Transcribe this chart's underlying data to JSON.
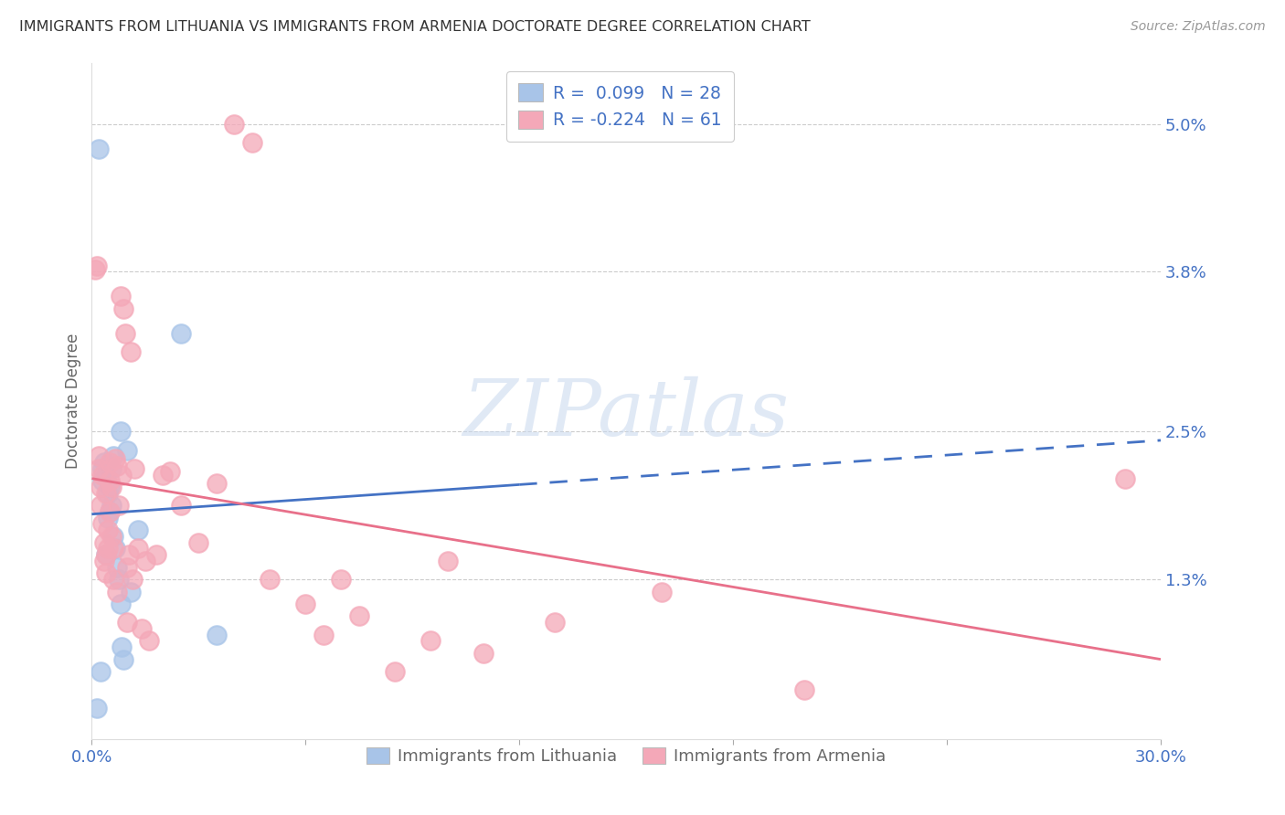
{
  "title": "IMMIGRANTS FROM LITHUANIA VS IMMIGRANTS FROM ARMENIA DOCTORATE DEGREE CORRELATION CHART",
  "source": "Source: ZipAtlas.com",
  "ylabel": "Doctorate Degree",
  "yticks_right": [
    "5.0%",
    "3.8%",
    "2.5%",
    "1.3%"
  ],
  "ytick_values": [
    5.0,
    3.8,
    2.5,
    1.3
  ],
  "xlim": [
    0.0,
    30.0
  ],
  "ylim": [
    0.0,
    5.5
  ],
  "color_blue": "#a8c4e8",
  "color_pink": "#f4a8b8",
  "color_line_blue": "#4472c4",
  "color_line_pink": "#e8708a",
  "color_axis_labels": "#4472c4",
  "watermark_text": "ZIPatlas",
  "blue_line_x0": 0.0,
  "blue_line_y0": 1.83,
  "blue_line_x1": 30.0,
  "blue_line_y1": 2.43,
  "blue_dash_start_x": 12.0,
  "pink_line_x0": 0.0,
  "pink_line_y0": 2.12,
  "pink_line_x1": 30.0,
  "pink_line_y1": 0.65,
  "blue_x": [
    0.15,
    0.2,
    0.25,
    0.3,
    0.3,
    0.35,
    0.4,
    0.4,
    0.45,
    0.45,
    0.5,
    0.5,
    0.55,
    0.55,
    0.6,
    0.6,
    0.65,
    0.7,
    0.75,
    0.8,
    0.8,
    0.85,
    0.9,
    1.0,
    1.1,
    1.3,
    2.5,
    3.5
  ],
  "blue_y": [
    0.25,
    4.8,
    0.55,
    2.1,
    2.2,
    2.25,
    1.5,
    2.15,
    2.0,
    1.8,
    1.85,
    2.05,
    2.2,
    1.9,
    2.3,
    1.65,
    1.55,
    1.4,
    1.3,
    2.5,
    1.1,
    0.75,
    0.65,
    2.35,
    1.2,
    1.7,
    3.3,
    0.85
  ],
  "pink_x": [
    0.1,
    0.15,
    0.2,
    0.2,
    0.25,
    0.25,
    0.3,
    0.3,
    0.35,
    0.35,
    0.4,
    0.4,
    0.4,
    0.45,
    0.45,
    0.5,
    0.5,
    0.5,
    0.55,
    0.55,
    0.6,
    0.6,
    0.65,
    0.7,
    0.7,
    0.75,
    0.8,
    0.85,
    0.9,
    0.95,
    1.0,
    1.0,
    1.05,
    1.1,
    1.15,
    1.2,
    1.3,
    1.4,
    1.5,
    1.6,
    1.8,
    2.0,
    2.2,
    2.5,
    3.0,
    3.5,
    4.0,
    4.5,
    5.0,
    6.0,
    6.5,
    7.0,
    7.5,
    8.5,
    9.5,
    10.0,
    11.0,
    13.0,
    16.0,
    20.0,
    29.0
  ],
  "pink_y": [
    3.82,
    3.85,
    2.2,
    2.3,
    2.05,
    1.9,
    2.15,
    1.75,
    1.6,
    1.45,
    1.35,
    2.0,
    1.5,
    1.55,
    1.7,
    2.25,
    1.85,
    2.1,
    2.05,
    1.65,
    1.55,
    1.3,
    2.28,
    1.2,
    2.22,
    1.9,
    3.6,
    2.15,
    3.5,
    3.3,
    1.4,
    0.95,
    1.5,
    3.15,
    1.3,
    2.2,
    1.55,
    0.9,
    1.45,
    0.8,
    1.5,
    2.15,
    2.18,
    1.9,
    1.6,
    2.08,
    5.0,
    4.85,
    1.3,
    1.1,
    0.85,
    1.3,
    1.0,
    0.55,
    0.8,
    1.45,
    0.7,
    0.95,
    1.2,
    0.4,
    2.12
  ]
}
